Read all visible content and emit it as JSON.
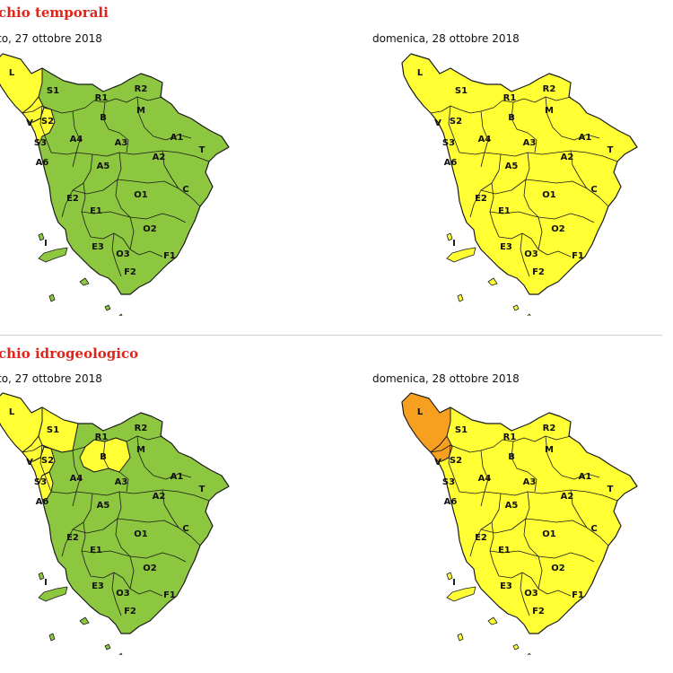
{
  "sections": [
    {
      "title": "chio temporali",
      "left_date": "to, 27 ottobre 2018",
      "right_date": "domenica, 28 ottobre 2018"
    },
    {
      "title": "chio idrogeologico",
      "left_date": "to, 27 ottobre 2018",
      "right_date": "domenica, 28 ottobre 2018"
    }
  ],
  "zone_labels": [
    "L",
    "V",
    "S1",
    "S2",
    "S3",
    "R1",
    "R2",
    "B",
    "M",
    "A1",
    "A2",
    "A3",
    "A4",
    "A5",
    "A6",
    "T",
    "C",
    "O1",
    "O2",
    "O3",
    "E1",
    "E2",
    "E3",
    "F1",
    "F2",
    "I"
  ],
  "colors": {
    "green": "#8dc63f",
    "yellow": "#ffff33",
    "orange": "#f7a01f",
    "border": "#1a1a1a",
    "title_red": "#e0261b"
  },
  "maps": [
    {
      "id": "temporali-sat",
      "base": "green",
      "yellow_zones": [
        "L",
        "V",
        "S2"
      ],
      "orange_zones": []
    },
    {
      "id": "temporali-sun",
      "base": "yellow",
      "yellow_zones": [],
      "orange_zones": []
    },
    {
      "id": "idro-sat",
      "base": "green",
      "yellow_zones": [
        "L",
        "V",
        "S1",
        "S2",
        "S3",
        "B"
      ],
      "orange_zones": []
    },
    {
      "id": "idro-sun",
      "base": "yellow",
      "yellow_zones": [],
      "orange_zones": [
        "L",
        "V"
      ]
    }
  ]
}
